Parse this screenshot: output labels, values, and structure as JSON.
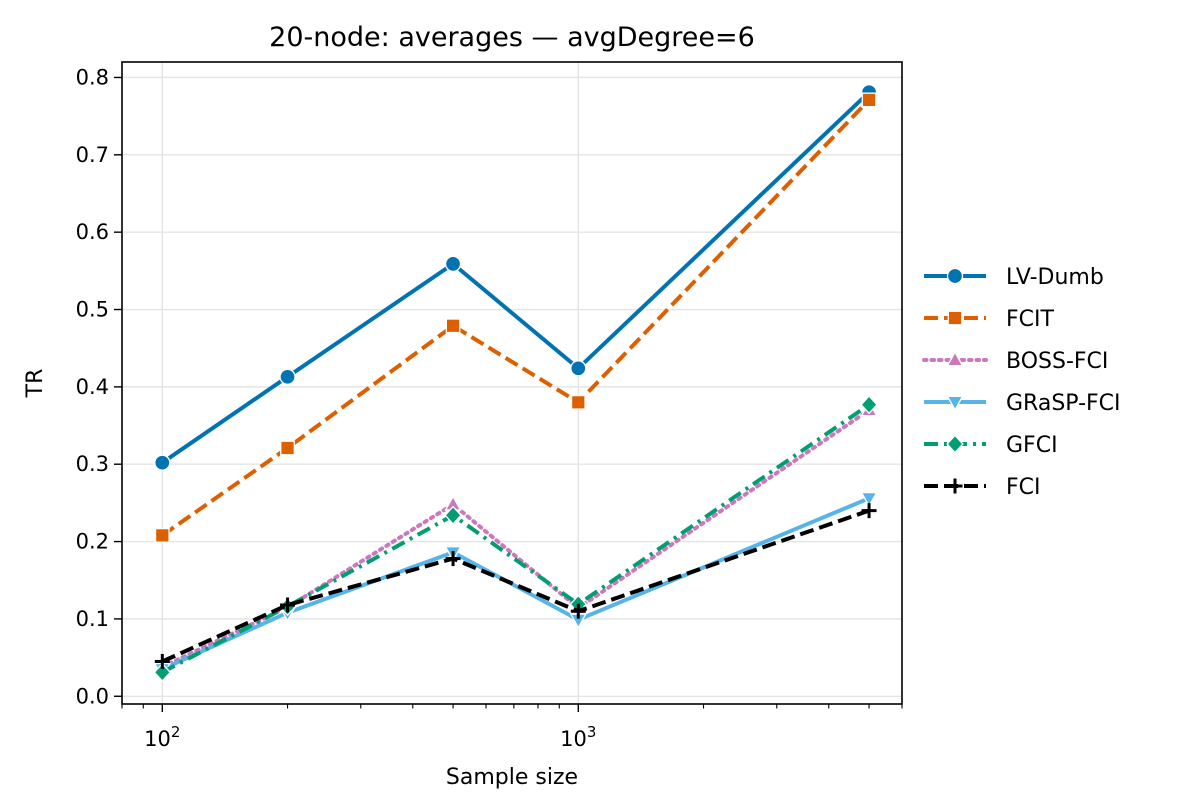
{
  "chart_data": {
    "type": "line",
    "title": "20-node: averages — avgDegree=6",
    "xlabel": "Sample size",
    "ylabel": "TR",
    "xscale": "log",
    "xlim": [
      80,
      6000
    ],
    "ylim": [
      -0.01,
      0.82
    ],
    "x": [
      100,
      200,
      500,
      1000,
      5000
    ],
    "xticks": [
      {
        "value": 100,
        "label_base": "10",
        "label_exp": "2"
      },
      {
        "value": 1000,
        "label_base": "10",
        "label_exp": "3"
      }
    ],
    "yticks": [
      0.0,
      0.1,
      0.2,
      0.3,
      0.4,
      0.5,
      0.6,
      0.7,
      0.8
    ],
    "ytick_labels": [
      "0.0",
      "0.1",
      "0.2",
      "0.3",
      "0.4",
      "0.5",
      "0.6",
      "0.7",
      "0.8"
    ],
    "grid": true,
    "legend_position": "right-outside",
    "series": [
      {
        "name": "LV-Dumb",
        "values": [
          0.302,
          0.413,
          0.559,
          0.424,
          0.781
        ],
        "color": "#0173b2",
        "dash": "solid",
        "marker": "circle"
      },
      {
        "name": "FCIT",
        "values": [
          0.208,
          0.321,
          0.479,
          0.38,
          0.771
        ],
        "color": "#de5f00",
        "dash": "dashed",
        "marker": "square"
      },
      {
        "name": "BOSS-FCI",
        "values": [
          0.038,
          0.115,
          0.248,
          0.114,
          0.37
        ],
        "color": "#cc78bc",
        "dash": "dotted",
        "marker": "triangle-up"
      },
      {
        "name": "GRaSP-FCI",
        "values": [
          0.035,
          0.108,
          0.186,
          0.099,
          0.256
        ],
        "color": "#56b4e9",
        "dash": "solid",
        "marker": "triangle-down"
      },
      {
        "name": "GFCI",
        "values": [
          0.031,
          0.116,
          0.234,
          0.119,
          0.377
        ],
        "color": "#029e73",
        "dash": "dashdot",
        "marker": "diamond"
      },
      {
        "name": "FCI",
        "values": [
          0.045,
          0.118,
          0.178,
          0.11,
          0.24
        ],
        "color": "#000000",
        "dash": "dashed",
        "marker": "plus"
      }
    ]
  }
}
